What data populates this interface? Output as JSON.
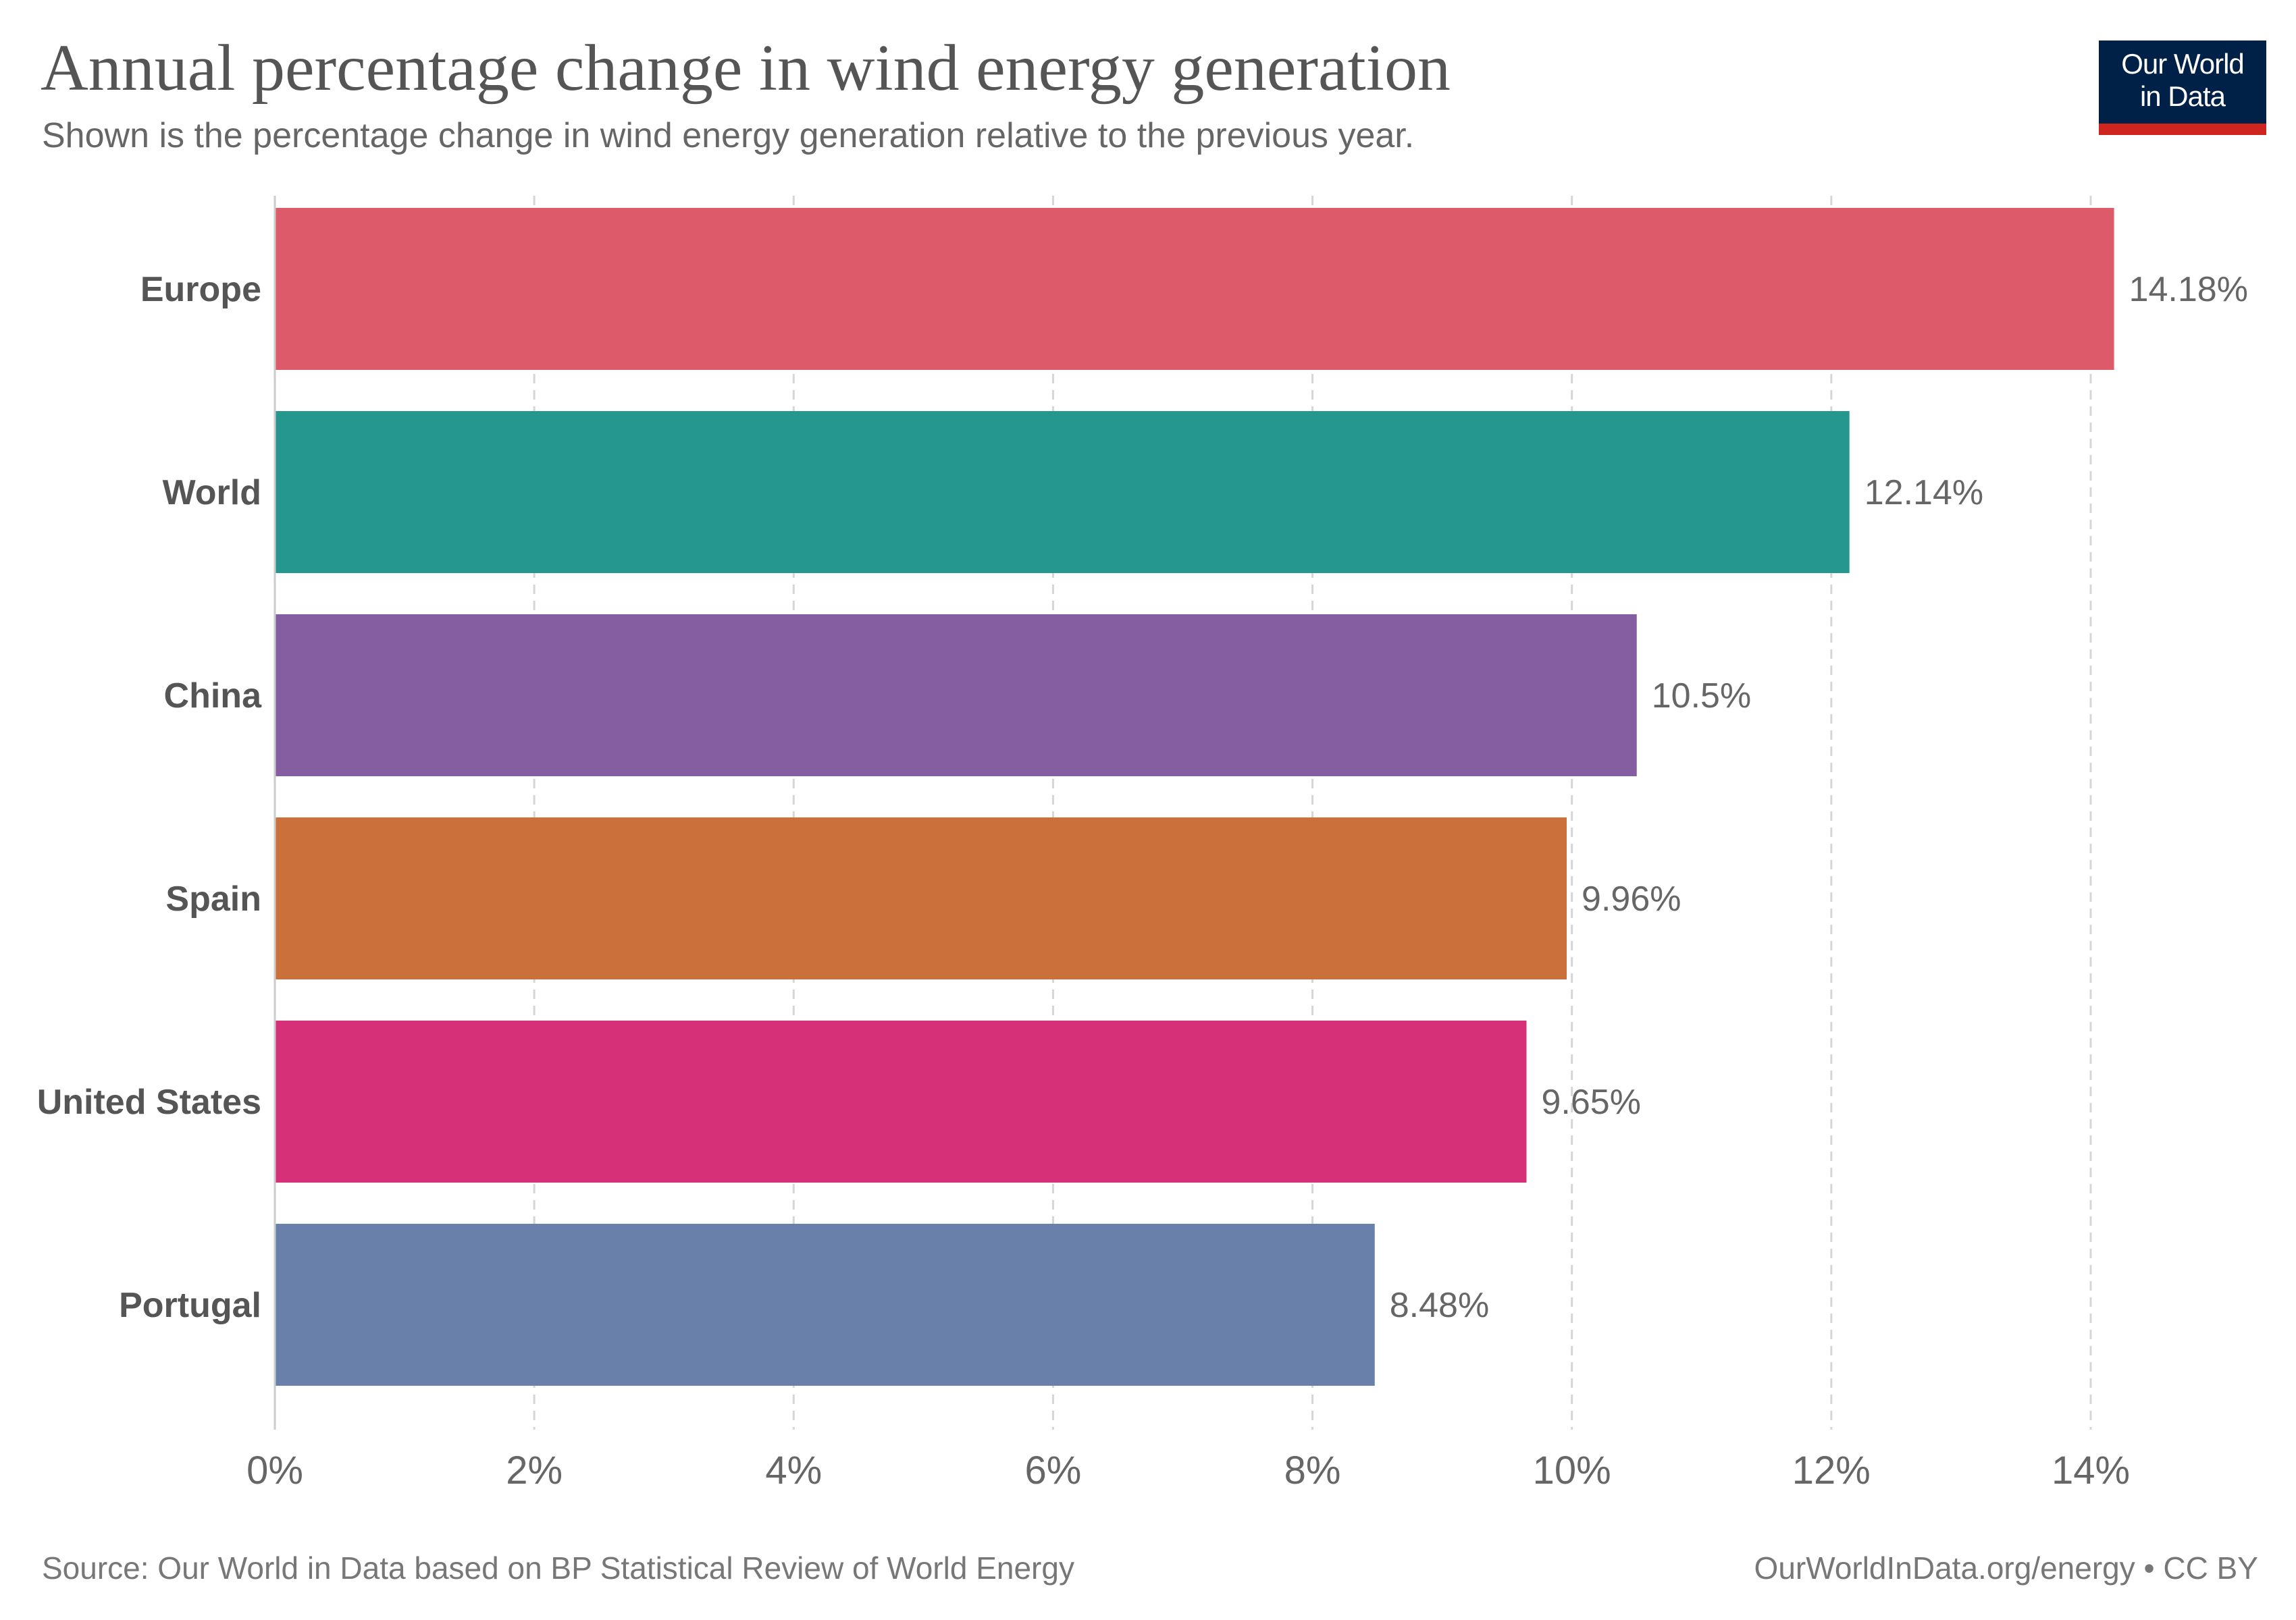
{
  "header": {
    "title": "Annual percentage change in wind energy generation",
    "subtitle": "Shown is the percentage change in wind energy generation relative to the previous year."
  },
  "logo": {
    "line1": "Our World",
    "line2": "in Data",
    "background_color": "#002147",
    "bar_color": "#ce261e"
  },
  "footer": {
    "source": "Source: Our World in Data based on BP Statistical Review of World Energy",
    "url": "OurWorldInData.org/energy • CC BY"
  },
  "chart_data": {
    "type": "bar",
    "orientation": "horizontal",
    "categories": [
      "Europe",
      "World",
      "China",
      "Spain",
      "United States",
      "Portugal"
    ],
    "values": [
      14.18,
      12.14,
      10.5,
      9.96,
      9.65,
      8.48
    ],
    "value_labels": [
      "14.18%",
      "12.14%",
      "10.5%",
      "9.96%",
      "9.65%",
      "8.48%"
    ],
    "colors": [
      "#dd5a6a",
      "#26978f",
      "#845ea1",
      "#cb703a",
      "#d63079",
      "#6880aa"
    ],
    "xlim": [
      0,
      14
    ],
    "x_ticks": [
      0,
      2,
      4,
      6,
      8,
      10,
      12,
      14
    ],
    "x_tick_labels": [
      "0%",
      "2%",
      "4%",
      "6%",
      "8%",
      "10%",
      "12%",
      "14%"
    ],
    "grid": "vertical-dashed",
    "legend": "none"
  }
}
